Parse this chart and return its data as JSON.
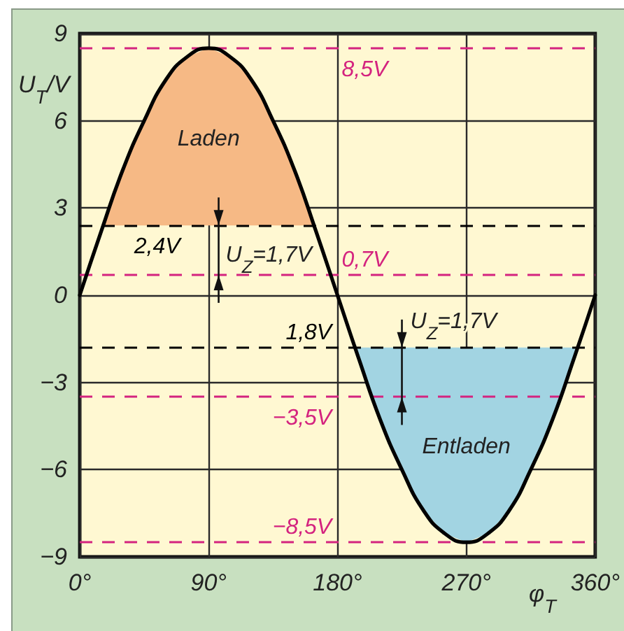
{
  "chart_data": {
    "type": "line",
    "xlabel": "φ$_{T}$",
    "ylabel": "U$_{T}$/V",
    "x": [
      0,
      15,
      30,
      45,
      60,
      75,
      90,
      105,
      120,
      135,
      150,
      165,
      180,
      195,
      210,
      225,
      240,
      255,
      270,
      285,
      300,
      315,
      330,
      345,
      360
    ],
    "xlim": [
      0,
      360
    ],
    "xticks": [
      {
        "value": 0,
        "label": "0°"
      },
      {
        "value": 90,
        "label": "90°"
      },
      {
        "value": 180,
        "label": "180°"
      },
      {
        "value": 270,
        "label": "270°"
      },
      {
        "value": 360,
        "label": "360°"
      }
    ],
    "ylim": [
      -9,
      9
    ],
    "yticks": [
      {
        "value": -9,
        "label": "−9"
      },
      {
        "value": -6,
        "label": "−6"
      },
      {
        "value": -3,
        "label": "−3"
      },
      0,
      3,
      6,
      9
    ],
    "grid": true,
    "marker": "none",
    "series": [
      {
        "color": "#000000",
        "values": [
          0,
          2.2,
          4.3,
          6.0,
          7.4,
          8.2,
          8.5,
          8.2,
          7.4,
          6.0,
          4.3,
          2.2,
          0,
          -2.2,
          -4.3,
          -6.0,
          -7.4,
          -8.2,
          -8.5,
          -8.2,
          -7.4,
          -6.0,
          -4.3,
          -2.2,
          0
        ]
      },
      {
        "type": "area",
        "name": "Laden",
        "color": "#f6b985",
        "x": [
          16.4,
          30,
          45,
          60,
          75,
          90,
          105,
          120,
          135,
          150,
          163.6
        ],
        "values": [
          2.4,
          4.3,
          6.0,
          7.4,
          8.2,
          8.5,
          8.2,
          7.4,
          6.0,
          4.3,
          2.4
        ]
      },
      {
        "type": "area",
        "name": "Entladen",
        "color": "#a2d4e2",
        "x": [
          192.2,
          210,
          225,
          240,
          255,
          270,
          285,
          300,
          315,
          330,
          347.8
        ],
        "values": [
          -1.8,
          -4.3,
          -6.0,
          -7.4,
          -8.2,
          -8.5,
          -8.2,
          -7.4,
          -6.0,
          -4.3,
          -1.8
        ]
      }
    ],
    "ref_lines": [
      {
        "axis": "y",
        "value": 8.5,
        "label": "8,5V",
        "color": "#d4237f",
        "line_style": "dashed"
      },
      {
        "axis": "y",
        "value": 2.4,
        "label": "2,4V",
        "color": "#000000",
        "line_style": "dashed"
      },
      {
        "axis": "y",
        "value": 0.7,
        "label": "0,7V",
        "color": "#d4237f",
        "line_style": "dashed"
      },
      {
        "axis": "y",
        "value": -1.8,
        "label": "1,8V",
        "color": "#000000",
        "line_style": "dashed"
      },
      {
        "axis": "y",
        "value": -3.5,
        "label": "−3,5V",
        "color": "#d4237f",
        "line_style": "dashed"
      },
      {
        "axis": "y",
        "value": -8.5,
        "label": "−8,5V",
        "color": "#d4237f",
        "line_style": "dashed"
      }
    ],
    "annotations": [
      "U$_{Z}$=1,7V",
      "U$_{Z}$=1,7V"
    ]
  }
}
